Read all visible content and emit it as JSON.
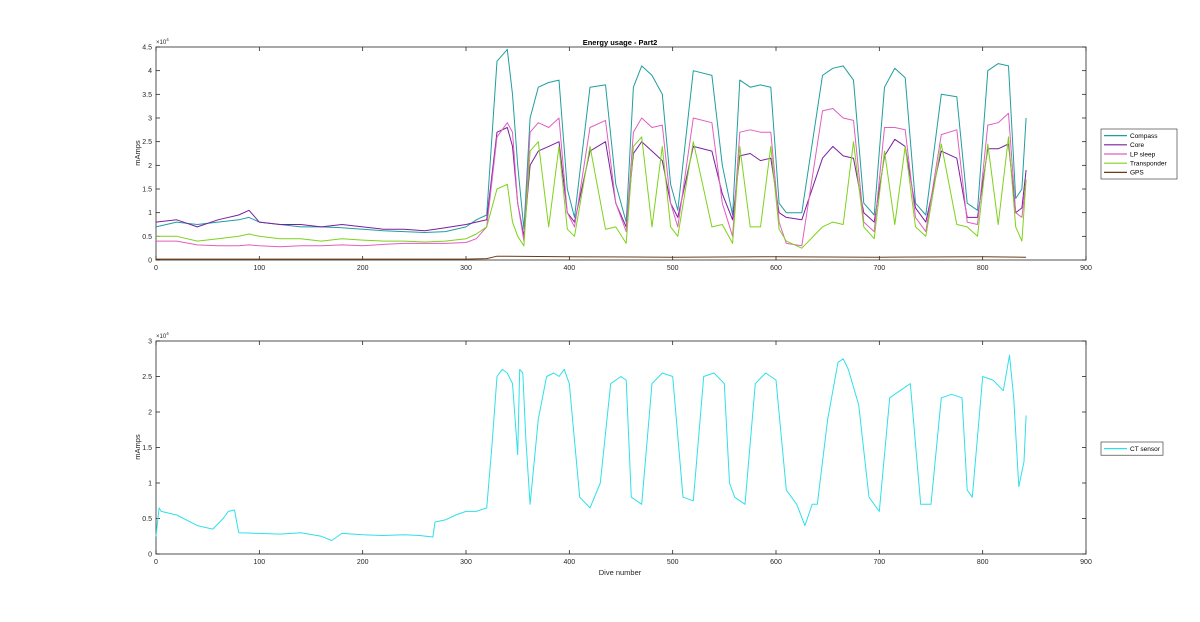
{
  "chart_data": [
    {
      "type": "line",
      "title": "Energy usage - Part2",
      "xlabel": "",
      "ylabel": "mAmps",
      "exponent_label": "×10",
      "exponent_power": "4",
      "xlim": [
        0,
        900
      ],
      "ylim": [
        0,
        45000
      ],
      "xticks": [
        0,
        100,
        200,
        300,
        400,
        500,
        600,
        700,
        800,
        900
      ],
      "yticks": [
        0,
        5000,
        10000,
        15000,
        20000,
        25000,
        30000,
        35000,
        40000,
        45000
      ],
      "ytick_labels": [
        "0",
        "0.5",
        "1",
        "1.5",
        "2",
        "2.5",
        "3",
        "3.5",
        "4",
        "4.5"
      ],
      "legend_position": "outside-right",
      "series": [
        {
          "name": "Compass",
          "color": "#1f9e9e",
          "x": [
            0,
            20,
            40,
            60,
            80,
            90,
            100,
            120,
            140,
            160,
            180,
            200,
            220,
            240,
            260,
            280,
            300,
            310,
            320,
            330,
            340,
            345,
            350,
            356,
            362,
            370,
            380,
            390,
            398,
            405,
            420,
            435,
            445,
            455,
            462,
            470,
            480,
            490,
            498,
            505,
            520,
            538,
            548,
            558,
            565,
            575,
            585,
            595,
            603,
            610,
            625,
            645,
            655,
            665,
            675,
            685,
            695,
            705,
            715,
            725,
            735,
            745,
            760,
            775,
            785,
            795,
            805,
            815,
            825,
            832,
            838,
            842
          ],
          "y": [
            7000,
            8000,
            7500,
            8000,
            8500,
            9000,
            8000,
            7500,
            7000,
            7000,
            6800,
            6500,
            6200,
            6000,
            5800,
            6000,
            7000,
            8500,
            9500,
            42000,
            44500,
            35000,
            20000,
            6500,
            30000,
            36500,
            37500,
            38000,
            15000,
            9000,
            36500,
            37000,
            16000,
            8000,
            36500,
            41000,
            39000,
            35000,
            16000,
            10500,
            40000,
            39000,
            20000,
            9500,
            38000,
            36500,
            37000,
            36500,
            12000,
            10000,
            10000,
            39000,
            40500,
            41000,
            38000,
            12000,
            9500,
            36500,
            40500,
            38500,
            12000,
            9500,
            35000,
            34500,
            12000,
            10500,
            40000,
            41500,
            41000,
            13000,
            15000,
            30000
          ]
        },
        {
          "name": "Core",
          "color": "#7a1fa2",
          "x": [
            0,
            20,
            40,
            60,
            80,
            90,
            100,
            120,
            140,
            160,
            180,
            200,
            220,
            240,
            260,
            280,
            300,
            310,
            320,
            330,
            340,
            345,
            350,
            356,
            362,
            370,
            380,
            390,
            398,
            405,
            420,
            435,
            445,
            455,
            462,
            470,
            480,
            490,
            498,
            505,
            520,
            538,
            548,
            558,
            565,
            575,
            585,
            595,
            603,
            610,
            625,
            645,
            655,
            665,
            675,
            685,
            695,
            705,
            715,
            725,
            735,
            745,
            760,
            775,
            785,
            795,
            805,
            815,
            825,
            832,
            838,
            842
          ],
          "y": [
            8000,
            8500,
            7000,
            8500,
            9500,
            10500,
            8000,
            7500,
            7500,
            7000,
            7500,
            7000,
            6500,
            6500,
            6200,
            6800,
            7500,
            8000,
            8500,
            27000,
            28000,
            24000,
            12000,
            5000,
            20000,
            23000,
            24000,
            25000,
            10000,
            8000,
            23000,
            25000,
            12000,
            7000,
            22500,
            25000,
            23000,
            21000,
            12000,
            9000,
            24000,
            23000,
            14000,
            8500,
            22000,
            22500,
            21000,
            21500,
            10000,
            9000,
            8500,
            21500,
            24000,
            22000,
            21500,
            10000,
            8000,
            22000,
            25500,
            24000,
            11000,
            8000,
            23000,
            21500,
            9000,
            9000,
            23500,
            23500,
            24500,
            10000,
            11000,
            19000
          ]
        },
        {
          "name": "LP sleep",
          "color": "#e15fbf",
          "x": [
            0,
            20,
            40,
            60,
            80,
            90,
            100,
            120,
            140,
            160,
            180,
            200,
            220,
            240,
            260,
            280,
            300,
            310,
            320,
            330,
            340,
            345,
            350,
            356,
            362,
            370,
            380,
            390,
            398,
            405,
            420,
            435,
            445,
            455,
            462,
            470,
            480,
            490,
            498,
            505,
            520,
            538,
            548,
            558,
            565,
            575,
            585,
            595,
            603,
            610,
            625,
            645,
            655,
            665,
            675,
            685,
            695,
            705,
            715,
            725,
            735,
            745,
            760,
            775,
            785,
            795,
            805,
            815,
            825,
            832,
            838,
            842
          ],
          "y": [
            4000,
            4000,
            3200,
            3000,
            3000,
            3200,
            3000,
            2800,
            3000,
            3000,
            3200,
            3000,
            3300,
            3500,
            3500,
            3500,
            3700,
            4500,
            7000,
            26000,
            29000,
            27000,
            12000,
            4000,
            27000,
            29000,
            28000,
            30000,
            10000,
            7000,
            28000,
            29500,
            12000,
            6000,
            27000,
            30000,
            28000,
            28500,
            12000,
            7000,
            30000,
            29000,
            12000,
            5000,
            27000,
            27500,
            27000,
            27000,
            8000,
            3500,
            3000,
            31500,
            32000,
            30000,
            29500,
            8000,
            6000,
            28000,
            28000,
            27500,
            9000,
            6000,
            26500,
            27500,
            8000,
            7500,
            28500,
            29000,
            31000,
            10000,
            9000,
            17000
          ]
        },
        {
          "name": "Transponder",
          "color": "#7ed21b",
          "x": [
            0,
            20,
            40,
            60,
            80,
            90,
            100,
            120,
            140,
            160,
            180,
            200,
            220,
            240,
            260,
            280,
            300,
            310,
            320,
            330,
            340,
            345,
            350,
            356,
            362,
            370,
            380,
            390,
            398,
            405,
            420,
            435,
            445,
            455,
            462,
            470,
            480,
            490,
            498,
            505,
            520,
            538,
            548,
            558,
            565,
            575,
            585,
            595,
            603,
            610,
            625,
            645,
            655,
            665,
            675,
            685,
            695,
            705,
            715,
            725,
            735,
            745,
            760,
            775,
            785,
            795,
            805,
            815,
            825,
            832,
            838,
            842
          ],
          "y": [
            5000,
            5000,
            4000,
            4500,
            5000,
            5500,
            5000,
            4500,
            4500,
            4000,
            4500,
            4200,
            4000,
            4000,
            3800,
            4000,
            4500,
            5500,
            7000,
            15000,
            16000,
            8000,
            5000,
            3000,
            23000,
            25000,
            7000,
            24000,
            6500,
            5000,
            24000,
            6500,
            7000,
            3500,
            24000,
            26000,
            7000,
            24000,
            7000,
            5000,
            25000,
            7000,
            7500,
            3500,
            24000,
            7000,
            7000,
            24000,
            6500,
            4000,
            2500,
            7000,
            8000,
            7500,
            25000,
            7000,
            4500,
            23000,
            7500,
            24000,
            7000,
            5000,
            24500,
            7500,
            7000,
            5000,
            24500,
            7500,
            26000,
            7000,
            4000,
            17000
          ]
        },
        {
          "name": "GPS",
          "color": "#6e3a16",
          "x": [
            0,
            100,
            200,
            300,
            320,
            330,
            400,
            500,
            600,
            700,
            800,
            842
          ],
          "y": [
            200,
            200,
            200,
            200,
            300,
            800,
            700,
            600,
            700,
            600,
            700,
            600
          ]
        }
      ]
    },
    {
      "type": "line",
      "title": "",
      "xlabel": "Dive number",
      "ylabel": "mAmps",
      "exponent_label": "×10",
      "exponent_power": "4",
      "xlim": [
        0,
        900
      ],
      "ylim": [
        0,
        30000
      ],
      "xticks": [
        0,
        100,
        200,
        300,
        400,
        500,
        600,
        700,
        800,
        900
      ],
      "yticks": [
        0,
        5000,
        10000,
        15000,
        20000,
        25000,
        30000
      ],
      "ytick_labels": [
        "0",
        "0.5",
        "1",
        "1.5",
        "2",
        "2.5",
        "3"
      ],
      "legend_position": "outside-right",
      "series": [
        {
          "name": "CT sensor",
          "color": "#2fe0e8",
          "x": [
            0,
            3,
            5,
            20,
            40,
            55,
            65,
            70,
            76,
            80,
            100,
            120,
            140,
            160,
            170,
            180,
            200,
            220,
            240,
            255,
            268,
            270,
            280,
            290,
            300,
            310,
            320,
            325,
            330,
            335,
            340,
            345,
            350,
            352,
            355,
            358,
            362,
            370,
            378,
            385,
            390,
            395,
            400,
            410,
            420,
            430,
            440,
            450,
            455,
            460,
            470,
            480,
            490,
            500,
            510,
            520,
            530,
            540,
            550,
            555,
            560,
            570,
            580,
            590,
            600,
            610,
            620,
            628,
            635,
            640,
            650,
            660,
            665,
            670,
            680,
            690,
            700,
            710,
            720,
            730,
            740,
            750,
            760,
            770,
            780,
            785,
            790,
            800,
            810,
            820,
            826,
            830,
            835,
            840,
            842
          ],
          "y": [
            2500,
            6500,
            6000,
            5500,
            4000,
            3500,
            5000,
            6000,
            6200,
            3000,
            2900,
            2800,
            3000,
            2500,
            1900,
            2900,
            2700,
            2600,
            2700,
            2600,
            2400,
            4500,
            4800,
            5500,
            6000,
            6000,
            6500,
            15000,
            25000,
            26000,
            25500,
            24000,
            14000,
            26000,
            25500,
            16000,
            7000,
            19000,
            25000,
            25500,
            25000,
            26000,
            24000,
            8000,
            6500,
            10000,
            24000,
            25000,
            24500,
            8000,
            7000,
            24000,
            25500,
            25000,
            8000,
            7500,
            25000,
            25500,
            24000,
            10000,
            8000,
            7000,
            24000,
            25500,
            24500,
            9000,
            7000,
            4000,
            7000,
            7000,
            19000,
            27000,
            27500,
            26000,
            21000,
            8000,
            6000,
            22000,
            23000,
            24000,
            7000,
            7000,
            22000,
            22500,
            22000,
            9000,
            8000,
            25000,
            24500,
            23000,
            28000,
            22000,
            9500,
            13000,
            19500
          ]
        }
      ]
    }
  ]
}
